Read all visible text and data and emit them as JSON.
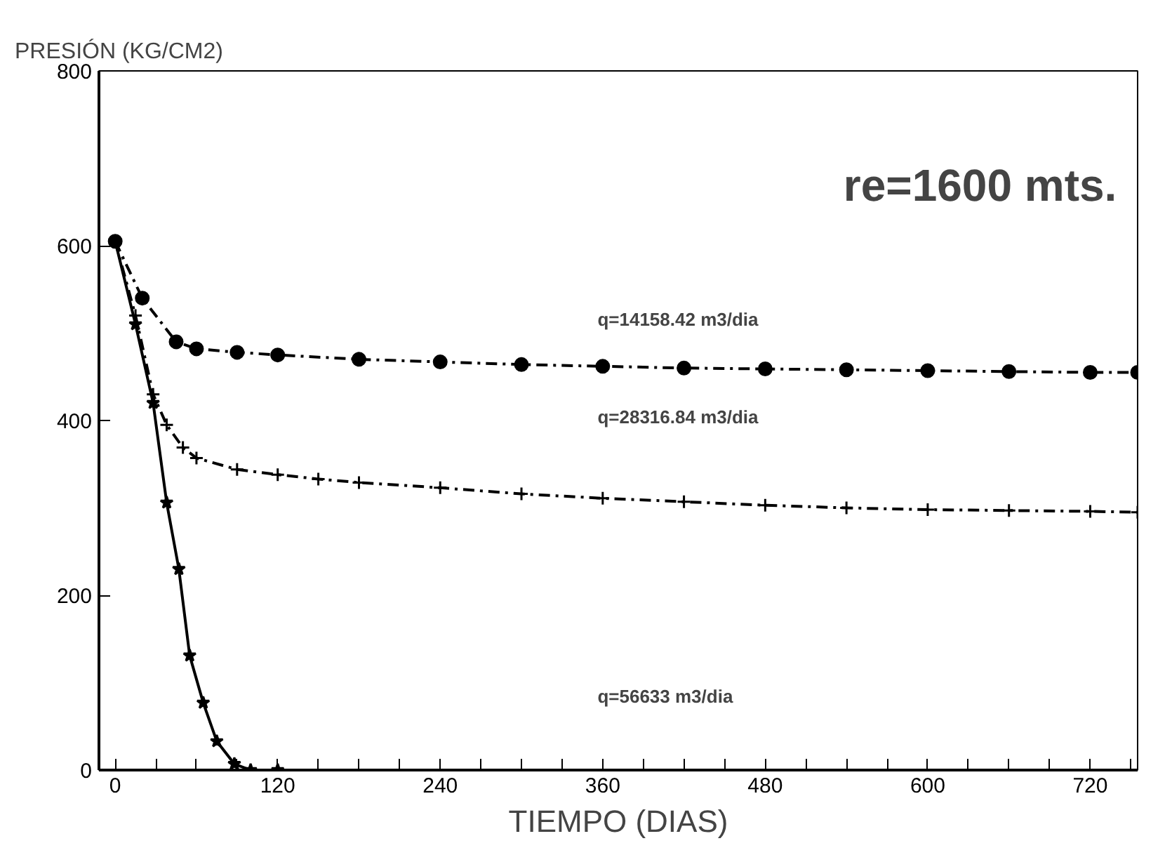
{
  "chart_data": {
    "type": "line",
    "ylabel": "PRESIÓN (KG/CM2)",
    "xlabel": "TIEMPO (DIAS)",
    "xlim": [
      -12,
      755
    ],
    "ylim": [
      0,
      800
    ],
    "xticks": [
      0,
      {
        "value": 30,
        "label": null
      },
      {
        "value": 60,
        "label": null
      },
      {
        "value": 90,
        "label": null
      },
      120,
      {
        "value": 150,
        "label": null
      },
      {
        "value": 180,
        "label": null
      },
      {
        "value": 210,
        "label": null
      },
      240,
      {
        "value": 270,
        "label": null
      },
      {
        "value": 300,
        "label": null
      },
      {
        "value": 330,
        "label": null
      },
      360,
      {
        "value": 390,
        "label": null
      },
      {
        "value": 420,
        "label": null
      },
      {
        "value": 450,
        "label": null
      },
      480,
      {
        "value": 510,
        "label": null
      },
      {
        "value": 540,
        "label": null
      },
      {
        "value": 570,
        "label": null
      },
      600,
      {
        "value": 630,
        "label": null
      },
      {
        "value": 660,
        "label": null
      },
      {
        "value": 690,
        "label": null
      },
      720,
      {
        "value": 750,
        "label": null
      }
    ],
    "yticks": [
      0,
      200,
      400,
      600,
      800
    ],
    "grid": false,
    "series": [
      {
        "color": "#000000",
        "line_style": "dashed",
        "marker": "circle",
        "x": [
          0,
          20,
          45,
          60,
          90,
          120,
          180,
          240,
          300,
          360,
          420,
          480,
          540,
          600,
          660,
          720,
          755
        ],
        "values": [
          605,
          540,
          490,
          482,
          478,
          475,
          470,
          467,
          464,
          462,
          460,
          459,
          458,
          457,
          456,
          455,
          455
        ]
      },
      {
        "color": "#000000",
        "line_style": "dashed",
        "marker": "cross",
        "x": [
          0,
          15,
          28,
          38,
          50,
          60,
          90,
          120,
          150,
          180,
          240,
          300,
          360,
          420,
          480,
          540,
          600,
          660,
          720,
          755
        ],
        "values": [
          605,
          520,
          430,
          395,
          369,
          357,
          344,
          338,
          333,
          329,
          323,
          316,
          311,
          307,
          303,
          300,
          298,
          297,
          296,
          295
        ]
      },
      {
        "color": "#000000",
        "line_style": "solid",
        "marker": "star",
        "x": [
          0,
          15,
          28,
          38,
          47,
          55,
          65,
          75,
          88,
          100,
          120
        ],
        "values": [
          605,
          510,
          420,
          306,
          230,
          131,
          77,
          33,
          7,
          0,
          0
        ]
      }
    ],
    "annotations": [
      "re=1600 mts.",
      "q=14158.42 m3/dia",
      "q=28316.84 m3/dia",
      "q=56633 m3/dia"
    ]
  }
}
